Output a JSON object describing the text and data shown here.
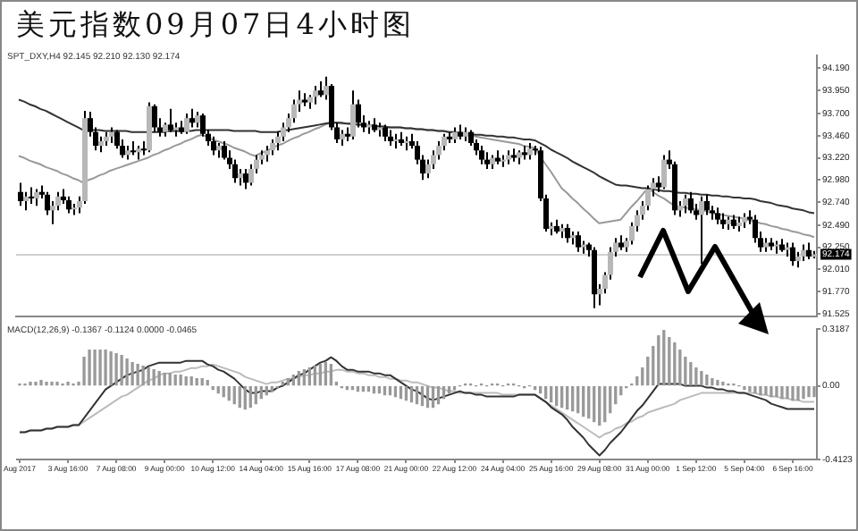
{
  "chart_data": [
    {
      "type": "candlestick",
      "title": "美元指数09月07日4小时图",
      "annotations": [
        "SPT_DXY,H4 92.145 92.210 92.130 92.174"
      ],
      "categories": [
        null,
        null,
        null,
        null,
        null,
        null,
        null,
        null,
        null,
        null,
        null,
        null,
        null,
        null,
        null,
        null,
        null,
        null,
        null,
        null,
        null,
        null,
        null,
        null,
        null,
        null,
        null,
        null,
        null,
        null,
        null,
        null,
        null,
        null,
        null,
        null,
        null,
        null,
        null,
        null,
        null,
        null,
        null,
        null,
        null,
        null,
        null,
        null,
        null,
        null,
        null,
        null,
        null,
        null,
        null,
        null,
        null,
        null,
        null,
        null,
        null,
        null,
        null,
        null,
        null,
        null,
        null,
        null,
        null,
        null,
        null,
        null,
        null,
        null,
        null,
        null,
        null,
        null,
        null,
        null,
        null,
        null,
        null,
        null,
        null,
        null,
        null,
        null,
        null,
        null,
        null,
        null,
        null,
        null,
        null,
        null,
        null,
        null,
        null,
        null,
        null,
        null,
        null,
        null,
        null,
        null,
        null,
        null,
        null,
        null,
        null,
        null,
        null,
        null,
        null,
        null,
        null,
        null,
        null,
        null,
        null,
        null,
        null,
        null,
        null,
        null,
        null,
        null,
        null,
        null,
        null,
        null,
        null,
        null,
        null,
        null,
        null,
        null,
        null,
        null,
        null,
        null,
        null,
        null,
        null,
        null,
        null,
        null,
        null
      ],
      "ohlc": [
        [
          92.85,
          92.95,
          92.7,
          92.75
        ],
        [
          92.75,
          92.85,
          92.65,
          92.8
        ],
        [
          92.8,
          92.9,
          92.72,
          92.78
        ],
        [
          92.78,
          92.88,
          92.7,
          92.85
        ],
        [
          92.85,
          92.92,
          92.78,
          92.82
        ],
        [
          92.82,
          92.85,
          92.6,
          92.65
        ],
        [
          92.65,
          92.75,
          92.5,
          92.7
        ],
        [
          92.7,
          92.85,
          92.65,
          92.8
        ],
        [
          92.8,
          92.88,
          92.72,
          92.76
        ],
        [
          92.76,
          92.8,
          92.62,
          92.66
        ],
        [
          92.66,
          92.72,
          92.6,
          92.68
        ],
        [
          92.68,
          92.8,
          92.62,
          92.75
        ],
        [
          92.75,
          93.73,
          92.72,
          93.65
        ],
        [
          93.65,
          93.72,
          93.45,
          93.5
        ],
        [
          93.5,
          93.55,
          93.3,
          93.35
        ],
        [
          93.35,
          93.45,
          93.28,
          93.4
        ],
        [
          93.4,
          93.5,
          93.35,
          93.45
        ],
        [
          93.45,
          93.55,
          93.38,
          93.5
        ],
        [
          93.5,
          93.52,
          93.32,
          93.35
        ],
        [
          93.35,
          93.42,
          93.22,
          93.25
        ],
        [
          93.25,
          93.35,
          93.2,
          93.3
        ],
        [
          93.3,
          93.4,
          93.25,
          93.28
        ],
        [
          93.28,
          93.35,
          93.2,
          93.32
        ],
        [
          93.32,
          93.4,
          93.25,
          93.3
        ],
        [
          93.3,
          93.82,
          93.28,
          93.78
        ],
        [
          93.78,
          93.8,
          93.5,
          93.55
        ],
        [
          93.55,
          93.65,
          93.45,
          93.5
        ],
        [
          93.5,
          93.6,
          93.45,
          93.58
        ],
        [
          93.58,
          93.75,
          93.5,
          93.52
        ],
        [
          93.52,
          93.6,
          93.45,
          93.55
        ],
        [
          93.55,
          93.62,
          93.48,
          93.5
        ],
        [
          93.5,
          93.7,
          93.48,
          93.65
        ],
        [
          93.65,
          93.75,
          93.55,
          93.6
        ],
        [
          93.6,
          93.72,
          93.55,
          93.68
        ],
        [
          93.68,
          93.7,
          93.45,
          93.48
        ],
        [
          93.48,
          93.52,
          93.35,
          93.4
        ],
        [
          93.4,
          93.45,
          93.25,
          93.3
        ],
        [
          93.3,
          93.38,
          93.22,
          93.35
        ],
        [
          93.35,
          93.4,
          93.2,
          93.22
        ],
        [
          93.22,
          93.3,
          93.1,
          93.15
        ],
        [
          93.15,
          93.2,
          92.95,
          93.0
        ],
        [
          93.0,
          93.1,
          92.92,
          93.05
        ],
        [
          93.05,
          93.1,
          92.88,
          92.95
        ],
        [
          92.95,
          93.15,
          92.92,
          93.1
        ],
        [
          93.1,
          93.25,
          93.05,
          93.2
        ],
        [
          93.2,
          93.3,
          93.15,
          93.25
        ],
        [
          93.25,
          93.35,
          93.18,
          93.3
        ],
        [
          93.3,
          93.42,
          93.25,
          93.38
        ],
        [
          93.38,
          93.5,
          93.3,
          93.45
        ],
        [
          93.45,
          93.6,
          93.4,
          93.55
        ],
        [
          93.55,
          93.7,
          93.5,
          93.65
        ],
        [
          93.65,
          93.85,
          93.6,
          93.8
        ],
        [
          93.8,
          93.95,
          93.72,
          93.85
        ],
        [
          93.85,
          93.92,
          93.78,
          93.82
        ],
        [
          93.82,
          93.9,
          93.75,
          93.88
        ],
        [
          93.88,
          94.0,
          93.8,
          93.95
        ],
        [
          93.95,
          94.05,
          93.88,
          93.9
        ],
        [
          93.9,
          94.1,
          93.85,
          94.0
        ],
        [
          94.0,
          94.02,
          93.52,
          93.55
        ],
        [
          93.55,
          93.6,
          93.38,
          93.42
        ],
        [
          93.42,
          93.52,
          93.35,
          93.48
        ],
        [
          93.48,
          93.55,
          93.4,
          93.45
        ],
        [
          93.45,
          93.95,
          93.42,
          93.8
        ],
        [
          93.8,
          93.85,
          93.55,
          93.6
        ],
        [
          93.6,
          93.68,
          93.5,
          93.55
        ],
        [
          93.55,
          93.62,
          93.48,
          93.58
        ],
        [
          93.58,
          93.65,
          93.5,
          93.52
        ],
        [
          93.52,
          93.6,
          93.45,
          93.55
        ],
        [
          93.55,
          93.58,
          93.4,
          93.45
        ],
        [
          93.45,
          93.52,
          93.35,
          93.4
        ],
        [
          93.4,
          93.48,
          93.32,
          93.42
        ],
        [
          93.42,
          93.5,
          93.35,
          93.38
        ],
        [
          93.38,
          93.45,
          93.3,
          93.4
        ],
        [
          93.4,
          93.48,
          93.32,
          93.35
        ],
        [
          93.35,
          93.4,
          93.15,
          93.2
        ],
        [
          93.2,
          93.25,
          92.98,
          93.05
        ],
        [
          93.05,
          93.2,
          93.0,
          93.15
        ],
        [
          93.15,
          93.3,
          93.1,
          93.25
        ],
        [
          93.25,
          93.4,
          93.2,
          93.35
        ],
        [
          93.35,
          93.48,
          93.3,
          93.45
        ],
        [
          93.45,
          93.5,
          93.38,
          93.42
        ],
        [
          93.42,
          93.55,
          93.38,
          93.5
        ],
        [
          93.5,
          93.58,
          93.42,
          93.45
        ],
        [
          93.45,
          93.55,
          93.4,
          93.5
        ],
        [
          93.5,
          93.52,
          93.35,
          93.38
        ],
        [
          93.38,
          93.42,
          93.25,
          93.3
        ],
        [
          93.3,
          93.35,
          93.15,
          93.2
        ],
        [
          93.2,
          93.28,
          93.1,
          93.15
        ],
        [
          93.15,
          93.25,
          93.1,
          93.22
        ],
        [
          93.22,
          93.3,
          93.15,
          93.18
        ],
        [
          93.18,
          93.25,
          93.12,
          93.2
        ],
        [
          93.2,
          93.3,
          93.15,
          93.25
        ],
        [
          93.25,
          93.32,
          93.18,
          93.22
        ],
        [
          93.22,
          93.3,
          93.15,
          93.28
        ],
        [
          93.28,
          93.35,
          93.2,
          93.25
        ],
        [
          93.25,
          93.38,
          93.2,
          93.32
        ],
        [
          93.32,
          93.35,
          93.25,
          93.3
        ],
        [
          93.3,
          93.34,
          92.75,
          92.78
        ],
        [
          92.78,
          92.82,
          92.42,
          92.45
        ],
        [
          92.45,
          92.52,
          92.38,
          92.48
        ],
        [
          92.48,
          92.55,
          92.4,
          92.42
        ],
        [
          92.42,
          92.5,
          92.35,
          92.46
        ],
        [
          92.46,
          92.5,
          92.3,
          92.35
        ],
        [
          92.35,
          92.42,
          92.28,
          92.38
        ],
        [
          92.38,
          92.42,
          92.2,
          92.25
        ],
        [
          92.25,
          92.32,
          92.18,
          92.28
        ],
        [
          92.28,
          92.3,
          92.15,
          92.22
        ],
        [
          92.22,
          92.25,
          91.59,
          91.74
        ],
        [
          91.74,
          91.85,
          91.62,
          91.8
        ],
        [
          91.8,
          91.98,
          91.75,
          91.95
        ],
        [
          91.95,
          92.25,
          91.9,
          92.2
        ],
        [
          92.2,
          92.35,
          92.15,
          92.3
        ],
        [
          92.3,
          92.38,
          92.22,
          92.25
        ],
        [
          92.25,
          92.35,
          92.2,
          92.32
        ],
        [
          92.32,
          92.52,
          92.28,
          92.48
        ],
        [
          92.48,
          92.65,
          92.42,
          92.6
        ],
        [
          92.6,
          92.75,
          92.55,
          92.7
        ],
        [
          92.7,
          92.92,
          92.65,
          92.88
        ],
        [
          92.88,
          93.0,
          92.8,
          92.95
        ],
        [
          92.95,
          93.02,
          92.85,
          92.9
        ],
        [
          92.9,
          93.25,
          92.88,
          93.2
        ],
        [
          93.2,
          93.3,
          93.1,
          93.15
        ],
        [
          93.15,
          93.18,
          92.6,
          92.65
        ],
        [
          92.65,
          92.75,
          92.58,
          92.7
        ],
        [
          92.7,
          92.82,
          92.62,
          92.78
        ],
        [
          92.78,
          92.85,
          92.62,
          92.65
        ],
        [
          92.65,
          92.72,
          92.55,
          92.6
        ],
        [
          92.6,
          92.8,
          92.07,
          92.75
        ],
        [
          92.75,
          92.82,
          92.6,
          92.65
        ],
        [
          92.65,
          92.7,
          92.55,
          92.62
        ],
        [
          92.62,
          92.68,
          92.5,
          92.55
        ],
        [
          92.55,
          92.62,
          92.45,
          92.5
        ],
        [
          92.5,
          92.58,
          92.44,
          92.55
        ],
        [
          92.55,
          92.6,
          92.45,
          92.48
        ],
        [
          92.48,
          92.58,
          92.42,
          92.52
        ],
        [
          92.52,
          92.62,
          92.46,
          92.58
        ],
        [
          92.58,
          92.65,
          92.5,
          92.55
        ],
        [
          92.55,
          92.6,
          92.3,
          92.35
        ],
        [
          92.35,
          92.42,
          92.2,
          92.25
        ],
        [
          92.25,
          92.35,
          92.2,
          92.3
        ],
        [
          92.3,
          92.35,
          92.22,
          92.26
        ],
        [
          92.26,
          92.32,
          92.18,
          92.28
        ],
        [
          92.28,
          92.34,
          92.2,
          92.22
        ],
        [
          92.22,
          92.3,
          92.15,
          92.25
        ],
        [
          92.25,
          92.3,
          92.05,
          92.1
        ],
        [
          92.1,
          92.2,
          92.03,
          92.15
        ],
        [
          92.15,
          92.28,
          92.1,
          92.22
        ],
        [
          92.22,
          92.3,
          92.12,
          92.15
        ],
        [
          92.145,
          92.21,
          92.13,
          92.174
        ]
      ],
      "series": [
        {
          "type": "line",
          "color": "#333333",
          "values": [
            93.85,
            93.83,
            93.8,
            93.78,
            93.75,
            93.73,
            93.7,
            93.67,
            93.64,
            93.61,
            93.58,
            93.55,
            93.52,
            93.52,
            93.52,
            93.52,
            93.51,
            93.51,
            93.51,
            93.51,
            93.51,
            93.5,
            93.5,
            93.5,
            93.5,
            93.5,
            93.5,
            93.5,
            93.51,
            93.51,
            93.51,
            93.51,
            93.51,
            93.52,
            93.52,
            93.52,
            93.52,
            93.52,
            93.52,
            93.52,
            93.51,
            93.51,
            93.51,
            93.51,
            93.51,
            93.5,
            93.5,
            93.5,
            93.5,
            93.51,
            93.52,
            93.53,
            93.54,
            93.55,
            93.56,
            93.57,
            93.58,
            93.59,
            93.6,
            93.6,
            93.6,
            93.59,
            93.59,
            93.58,
            93.58,
            93.57,
            93.57,
            93.56,
            93.56,
            93.55,
            93.55,
            93.55,
            93.54,
            93.54,
            93.53,
            93.53,
            93.52,
            93.52,
            93.51,
            93.51,
            93.5,
            93.5,
            93.49,
            93.49,
            93.48,
            93.47,
            93.47,
            93.46,
            93.46,
            93.45,
            93.45,
            93.44,
            93.44,
            93.43,
            93.42,
            93.42,
            93.41,
            93.38,
            93.35,
            93.31,
            93.28,
            93.25,
            93.22,
            93.18,
            93.15,
            93.12,
            93.09,
            93.06,
            93.02,
            92.99,
            92.96,
            92.93,
            92.92,
            92.92,
            92.91,
            92.9,
            92.89,
            92.89,
            92.88,
            92.87,
            92.86,
            92.86,
            92.85,
            92.84,
            92.84,
            92.83,
            92.83,
            92.82,
            92.82,
            92.81,
            92.81,
            92.8,
            92.8,
            92.79,
            92.79,
            92.78,
            92.78,
            92.77,
            92.75,
            92.74,
            92.73,
            92.71,
            92.7,
            92.69,
            92.67,
            92.66,
            92.65,
            92.63,
            92.62
          ]
        },
        {
          "type": "line",
          "color": "#999999",
          "values": [
            93.24,
            93.22,
            93.19,
            93.17,
            93.15,
            93.12,
            93.1,
            93.08,
            93.05,
            93.03,
            93.0,
            92.98,
            92.95,
            92.98,
            93.0,
            93.03,
            93.05,
            93.08,
            93.1,
            93.12,
            93.14,
            93.16,
            93.18,
            93.2,
            93.22,
            93.25,
            93.27,
            93.3,
            93.32,
            93.35,
            93.37,
            93.4,
            93.42,
            93.45,
            93.47,
            93.45,
            93.42,
            93.4,
            93.38,
            93.36,
            93.33,
            93.31,
            93.29,
            93.26,
            93.24,
            93.27,
            93.29,
            93.32,
            93.35,
            93.37,
            93.4,
            93.43,
            93.45,
            93.48,
            93.5,
            93.53,
            93.55,
            93.58,
            93.6,
            93.6,
            93.59,
            93.59,
            93.58,
            93.58,
            93.58,
            93.57,
            93.57,
            93.56,
            93.56,
            93.55,
            93.55,
            93.55,
            93.54,
            93.54,
            93.53,
            93.53,
            93.52,
            93.52,
            93.51,
            93.51,
            93.5,
            93.5,
            93.49,
            93.48,
            93.47,
            93.45,
            93.44,
            93.43,
            93.42,
            93.41,
            93.4,
            93.39,
            93.38,
            93.37,
            93.35,
            93.34,
            93.33,
            93.24,
            93.15,
            93.07,
            92.98,
            92.89,
            92.84,
            92.78,
            92.73,
            92.67,
            92.62,
            92.56,
            92.51,
            92.52,
            92.53,
            92.54,
            92.55,
            92.62,
            92.69,
            92.75,
            92.82,
            92.89,
            92.85,
            92.81,
            92.78,
            92.74,
            92.7,
            92.69,
            92.68,
            92.67,
            92.66,
            92.65,
            92.64,
            92.62,
            92.61,
            92.6,
            92.59,
            92.58,
            92.57,
            92.56,
            92.54,
            92.53,
            92.51,
            92.5,
            92.48,
            92.47,
            92.45,
            92.44,
            92.42,
            92.41,
            92.39,
            92.38,
            92.36
          ]
        }
      ],
      "ylim": [
        91.5,
        94.33
      ],
      "yticks": [
        {
          "value": 94.19,
          "label": "94.190"
        },
        {
          "value": 93.95,
          "label": "93.950"
        },
        {
          "value": 93.7,
          "label": "93.700"
        },
        {
          "value": 93.46,
          "label": "93.460"
        },
        {
          "value": 93.22,
          "label": "93.220"
        },
        {
          "value": 92.98,
          "label": "92.980"
        },
        {
          "value": 92.74,
          "label": "92.740"
        },
        {
          "value": 92.49,
          "label": "92.490"
        },
        {
          "value": 92.25,
          "label": "92.250"
        },
        {
          "value": 92.01,
          "label": "92.010"
        },
        {
          "value": 91.77,
          "label": "91.770"
        },
        {
          "value": 91.525,
          "label": "91.525"
        }
      ],
      "ref_lines": [
        {
          "axis": "y",
          "value": 92.174,
          "label": "92.174",
          "color": "#d0d0d0"
        }
      ],
      "tick_labels": "y"
    },
    {
      "type": "bar",
      "annotations": [
        "MACD(12,26,9) -0.1367 -0.1124 0.0000 -0.0465"
      ],
      "categories": [
        "Aug 2017",
        null,
        null,
        null,
        null,
        null,
        null,
        null,
        null,
        "3 Aug 16:00",
        null,
        null,
        null,
        null,
        null,
        null,
        null,
        null,
        "7 Aug 08:00",
        null,
        null,
        null,
        null,
        null,
        null,
        null,
        null,
        "9 Aug 00:00",
        null,
        null,
        null,
        null,
        null,
        null,
        null,
        null,
        "10 Aug 12:00",
        null,
        null,
        null,
        null,
        null,
        null,
        null,
        null,
        "14 Aug 04:00",
        null,
        null,
        null,
        null,
        null,
        null,
        null,
        null,
        "15 Aug 16:00",
        null,
        null,
        null,
        null,
        null,
        null,
        null,
        null,
        "17 Aug 08:00",
        null,
        null,
        null,
        null,
        null,
        null,
        null,
        null,
        "21 Aug 00:00",
        null,
        null,
        null,
        null,
        null,
        null,
        null,
        null,
        "22 Aug 12:00",
        null,
        null,
        null,
        null,
        null,
        null,
        null,
        null,
        "24 Aug 04:00",
        null,
        null,
        null,
        null,
        null,
        null,
        null,
        null,
        "25 Aug 16:00",
        null,
        null,
        null,
        null,
        null,
        null,
        null,
        null,
        "29 Aug 08:00",
        null,
        null,
        null,
        null,
        null,
        null,
        null,
        null,
        "31 Aug 00:00",
        null,
        null,
        null,
        null,
        null,
        null,
        null,
        null,
        "1 Sep 12:00",
        null,
        null,
        null,
        null,
        null,
        null,
        null,
        null,
        "5 Sep 04:00",
        null,
        null,
        null,
        null,
        null,
        null,
        null,
        null,
        "6 Sep 16:00",
        null,
        null,
        null,
        null
      ],
      "series": [
        {
          "type": "bar",
          "color": "#999999",
          "values": [
            0.01,
            0.01,
            0.02,
            0.02,
            0.03,
            0.02,
            0.02,
            0.02,
            0.01,
            0.02,
            0.01,
            0.02,
            0.16,
            0.2,
            0.2,
            0.2,
            0.2,
            0.19,
            0.18,
            0.17,
            0.15,
            0.13,
            0.12,
            0.11,
            0.1,
            0.09,
            0.08,
            0.07,
            0.07,
            0.06,
            0.06,
            0.05,
            0.05,
            0.04,
            0.04,
            0.03,
            -0.02,
            -0.04,
            -0.06,
            -0.08,
            -0.1,
            -0.12,
            -0.13,
            -0.12,
            -0.1,
            -0.07,
            -0.05,
            -0.03,
            -0.01,
            0.02,
            0.04,
            0.06,
            0.08,
            0.09,
            0.1,
            0.11,
            0.12,
            0.13,
            0.12,
            0.02,
            -0.01,
            -0.02,
            -0.02,
            -0.03,
            -0.03,
            -0.03,
            -0.04,
            -0.04,
            -0.05,
            -0.05,
            -0.06,
            -0.07,
            -0.08,
            -0.09,
            -0.1,
            -0.11,
            -0.12,
            -0.12,
            -0.1,
            -0.07,
            -0.04,
            -0.02,
            0.0,
            0.01,
            0.01,
            0.0,
            0.01,
            0.0,
            0.01,
            0.01,
            0.0,
            0.01,
            0.01,
            0.0,
            -0.01,
            0.0,
            -0.02,
            -0.04,
            -0.07,
            -0.09,
            -0.11,
            -0.12,
            -0.13,
            -0.14,
            -0.15,
            -0.17,
            -0.18,
            -0.2,
            -0.22,
            -0.2,
            -0.15,
            -0.1,
            -0.05,
            -0.01,
            0.01,
            0.05,
            0.1,
            0.16,
            0.22,
            0.28,
            0.31,
            0.27,
            0.24,
            0.2,
            0.16,
            0.13,
            0.1,
            0.08,
            0.06,
            0.04,
            0.03,
            0.02,
            0.01,
            0.01,
            0.0,
            -0.02,
            -0.03,
            -0.04,
            -0.05,
            -0.05,
            -0.06,
            -0.06,
            -0.07,
            -0.07,
            -0.08,
            -0.08,
            -0.07,
            -0.06,
            -0.06
          ]
        },
        {
          "type": "line",
          "color": "#333333",
          "values": [
            -0.26,
            -0.26,
            -0.25,
            -0.25,
            -0.25,
            -0.24,
            -0.24,
            -0.23,
            -0.23,
            -0.23,
            -0.22,
            -0.22,
            -0.18,
            -0.14,
            -0.1,
            -0.06,
            -0.02,
            0.0,
            0.02,
            0.04,
            0.06,
            0.07,
            0.08,
            0.09,
            0.11,
            0.12,
            0.13,
            0.13,
            0.13,
            0.13,
            0.13,
            0.14,
            0.14,
            0.14,
            0.14,
            0.12,
            0.11,
            0.09,
            0.08,
            0.06,
            0.04,
            0.01,
            -0.02,
            -0.04,
            -0.04,
            -0.03,
            -0.03,
            -0.03,
            -0.01,
            0.0,
            0.02,
            0.04,
            0.06,
            0.07,
            0.09,
            0.11,
            0.13,
            0.14,
            0.16,
            0.14,
            0.11,
            0.09,
            0.09,
            0.08,
            0.08,
            0.08,
            0.07,
            0.07,
            0.06,
            0.06,
            0.04,
            0.02,
            0.0,
            -0.02,
            -0.03,
            -0.05,
            -0.07,
            -0.08,
            -0.07,
            -0.06,
            -0.05,
            -0.04,
            -0.03,
            -0.04,
            -0.04,
            -0.05,
            -0.05,
            -0.06,
            -0.06,
            -0.06,
            -0.06,
            -0.06,
            -0.06,
            -0.05,
            -0.05,
            -0.05,
            -0.05,
            -0.07,
            -0.09,
            -0.12,
            -0.14,
            -0.16,
            -0.19,
            -0.23,
            -0.26,
            -0.29,
            -0.33,
            -0.36,
            -0.39,
            -0.36,
            -0.32,
            -0.29,
            -0.26,
            -0.22,
            -0.18,
            -0.14,
            -0.11,
            -0.07,
            -0.03,
            0.01,
            0.01,
            0.01,
            0.01,
            0.01,
            0.0,
            0.0,
            0.0,
            0.0,
            -0.01,
            -0.01,
            -0.02,
            -0.02,
            -0.03,
            -0.03,
            -0.04,
            -0.04,
            -0.05,
            -0.06,
            -0.07,
            -0.08,
            -0.1,
            -0.11,
            -0.12,
            -0.13,
            -0.13,
            -0.13,
            -0.13,
            -0.13,
            -0.13
          ]
        },
        {
          "type": "line",
          "color": "#bbbbbb",
          "values": [
            -0.26,
            -0.26,
            -0.25,
            -0.25,
            -0.25,
            -0.24,
            -0.24,
            -0.23,
            -0.23,
            -0.23,
            -0.22,
            -0.22,
            -0.2,
            -0.18,
            -0.16,
            -0.14,
            -0.12,
            -0.1,
            -0.08,
            -0.06,
            -0.05,
            -0.03,
            -0.01,
            0.01,
            0.03,
            0.04,
            0.06,
            0.07,
            0.07,
            0.08,
            0.08,
            0.09,
            0.1,
            0.1,
            0.11,
            0.11,
            0.12,
            0.11,
            0.1,
            0.09,
            0.08,
            0.07,
            0.05,
            0.04,
            0.03,
            0.02,
            0.01,
            0.02,
            0.02,
            0.03,
            0.04,
            0.04,
            0.05,
            0.06,
            0.06,
            0.07,
            0.07,
            0.08,
            0.08,
            0.09,
            0.09,
            0.08,
            0.08,
            0.07,
            0.07,
            0.06,
            0.06,
            0.05,
            0.05,
            0.04,
            0.04,
            0.03,
            0.03,
            0.02,
            0.02,
            0.01,
            0.0,
            -0.01,
            -0.01,
            -0.02,
            -0.03,
            -0.03,
            -0.04,
            -0.04,
            -0.04,
            -0.04,
            -0.04,
            -0.04,
            -0.04,
            -0.04,
            -0.05,
            -0.05,
            -0.05,
            -0.05,
            -0.05,
            -0.05,
            -0.05,
            -0.07,
            -0.09,
            -0.11,
            -0.13,
            -0.15,
            -0.17,
            -0.19,
            -0.21,
            -0.23,
            -0.25,
            -0.27,
            -0.29,
            -0.27,
            -0.26,
            -0.24,
            -0.23,
            -0.21,
            -0.2,
            -0.18,
            -0.17,
            -0.15,
            -0.14,
            -0.13,
            -0.12,
            -0.11,
            -0.1,
            -0.08,
            -0.07,
            -0.06,
            -0.05,
            -0.04,
            -0.04,
            -0.04,
            -0.04,
            -0.04,
            -0.04,
            -0.04,
            -0.04,
            -0.04,
            -0.04,
            -0.04,
            -0.05,
            -0.05,
            -0.06,
            -0.06,
            -0.07,
            -0.07,
            -0.08,
            -0.08,
            -0.09,
            -0.09,
            -0.09
          ]
        }
      ],
      "ylim": [
        -0.4123,
        0.3187
      ],
      "yticks": [
        0.3187,
        {
          "value": 0,
          "label": "0.00"
        },
        -0.4123
      ]
    }
  ]
}
